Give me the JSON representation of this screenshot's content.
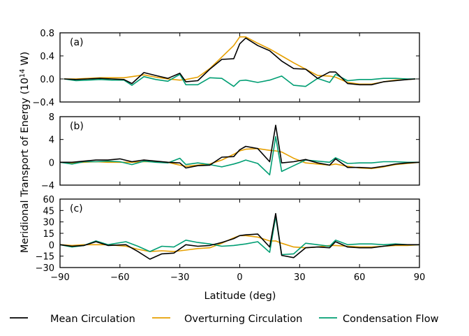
{
  "ylabel_prefix": "Meridional Transport of Energy (10",
  "ylabel_exp": "14",
  "ylabel_suffix": " W)",
  "xlabel": "Latitude (deg)",
  "colors": {
    "mean": "#000000",
    "overturning": "#E69F00",
    "condensation": "#009E73"
  },
  "legend": {
    "placement": "bottom",
    "entries": [
      "Mean Circulation",
      "Overturning Circulation",
      "Condensation Flow"
    ]
  },
  "chart_data": [
    {
      "type": "line",
      "panel_label": "(a)",
      "xlim": [
        -90,
        90
      ],
      "ylim": [
        -0.4,
        0.8
      ],
      "yticks": [
        "0.8",
        "0.4",
        "0.0",
        "−0.4"
      ],
      "ytick_values": [
        0.8,
        0.4,
        0.0,
        -0.4
      ],
      "x": [
        -88,
        -82,
        -76,
        -70,
        -64,
        -58,
        -54,
        -48,
        -42,
        -36,
        -30,
        -27,
        -21,
        -15,
        -9,
        -3,
        0,
        3,
        9,
        15,
        21,
        27,
        33,
        39,
        45,
        48,
        54,
        60,
        66,
        72,
        78,
        84,
        88
      ],
      "series": [
        {
          "key": "mean",
          "name": "Mean Circulation",
          "values": [
            0,
            -0.01,
            0,
            0.01,
            0,
            -0.01,
            -0.08,
            0.11,
            0.06,
            0.01,
            0.1,
            -0.05,
            -0.03,
            0.17,
            0.34,
            0.35,
            0.61,
            0.71,
            0.58,
            0.49,
            0.31,
            0.18,
            0.17,
            0.01,
            0.12,
            0.12,
            -0.08,
            -0.1,
            -0.1,
            -0.05,
            -0.03,
            -0.01,
            0
          ]
        },
        {
          "key": "overturning",
          "name": "Overturning Circulation",
          "values": [
            0,
            0,
            0.01,
            0.02,
            0.02,
            0.02,
            0.04,
            0.07,
            0.03,
            0,
            -0.02,
            -0.01,
            0.03,
            0.18,
            0.38,
            0.58,
            0.73,
            0.73,
            0.62,
            0.52,
            0.4,
            0.28,
            0.17,
            0.06,
            0.05,
            0.03,
            -0.06,
            -0.09,
            -0.09,
            -0.05,
            -0.02,
            -0.01,
            0
          ]
        },
        {
          "key": "condensation",
          "name": "Condensation Flow",
          "values": [
            0,
            -0.03,
            -0.02,
            -0.01,
            -0.02,
            -0.02,
            -0.11,
            0.04,
            -0.01,
            -0.04,
            0.08,
            -0.1,
            -0.1,
            0.02,
            0.01,
            -0.13,
            -0.03,
            -0.02,
            -0.06,
            -0.02,
            0.05,
            -0.11,
            -0.13,
            0.01,
            -0.06,
            0.08,
            -0.03,
            -0.01,
            -0.01,
            0.01,
            0.01,
            0,
            0
          ]
        }
      ]
    },
    {
      "type": "line",
      "panel_label": "(b)",
      "xlim": [
        -90,
        90
      ],
      "ylim": [
        -4,
        8
      ],
      "yticks": [
        "8",
        "4",
        "0",
        "−4"
      ],
      "ytick_values": [
        8,
        4,
        0,
        -4
      ],
      "x": [
        -90,
        -84,
        -78,
        -72,
        -66,
        -60,
        -54,
        -48,
        -42,
        -36,
        -30,
        -27,
        -21,
        -15,
        -9,
        -3,
        0,
        3,
        9,
        15,
        18,
        21,
        27,
        33,
        39,
        45,
        48,
        54,
        60,
        66,
        72,
        78,
        84,
        90
      ],
      "series": [
        {
          "key": "mean",
          "name": "Mean Circulation",
          "values": [
            0,
            0,
            0.2,
            0.4,
            0.4,
            0.6,
            0.1,
            0.4,
            0.2,
            0,
            -0.1,
            -1.0,
            -0.6,
            -0.5,
            0.9,
            1.0,
            2.2,
            2.8,
            2.4,
            0.1,
            6.5,
            -0.1,
            0.1,
            0.5,
            -0.1,
            -0.5,
            0.6,
            -0.9,
            -0.9,
            -1.0,
            -0.7,
            -0.3,
            -0.1,
            0
          ]
        },
        {
          "key": "overturning",
          "name": "Overturning Circulation",
          "values": [
            0,
            -0.1,
            0,
            0.1,
            0,
            0,
            0,
            0.1,
            0.1,
            0,
            -0.5,
            -0.7,
            -0.5,
            -0.3,
            0.4,
            1.4,
            2.0,
            2.3,
            2.4,
            2.1,
            2.0,
            1.8,
            0.7,
            -0.1,
            -0.3,
            -0.5,
            -0.3,
            -0.7,
            -1.0,
            -1.1,
            -0.8,
            -0.4,
            -0.2,
            0
          ]
        },
        {
          "key": "condensation",
          "name": "Condensation Flow",
          "values": [
            0,
            -0.3,
            0.1,
            0.1,
            0.2,
            0.1,
            -0.4,
            0.2,
            0,
            -0.1,
            0.7,
            -0.4,
            -0.1,
            -0.4,
            -0.8,
            -0.3,
            0,
            0.4,
            -0.2,
            -2.2,
            4.5,
            -1.6,
            -0.6,
            0.4,
            0.2,
            0,
            0.8,
            -0.2,
            -0.1,
            -0.1,
            0.1,
            0.1,
            0,
            0
          ]
        }
      ]
    },
    {
      "type": "line",
      "panel_label": "(c)",
      "xlim": [
        -90,
        90
      ],
      "ylim": [
        -30,
        60
      ],
      "yticks": [
        "60",
        "45",
        "30",
        "15",
        "0",
        "−15",
        "−30"
      ],
      "ytick_values": [
        60,
        45,
        30,
        15,
        0,
        -15,
        -30
      ],
      "x": [
        -90,
        -84,
        -78,
        -72,
        -66,
        -57,
        -51,
        -45,
        -39,
        -33,
        -27,
        -21,
        -15,
        -9,
        -3,
        0,
        3,
        9,
        15,
        18,
        21,
        27,
        33,
        39,
        45,
        48,
        54,
        60,
        66,
        72,
        78,
        84,
        90
      ],
      "series": [
        {
          "key": "mean",
          "name": "Mean Circulation",
          "values": [
            0,
            -2,
            -1,
            4,
            -1,
            0,
            -9,
            -19,
            -12,
            -11,
            0,
            -2,
            -1,
            3,
            8,
            12,
            13,
            14,
            -3,
            41,
            -14,
            -17,
            -4,
            -3,
            -4,
            4,
            -3,
            -4,
            -4,
            -2,
            0,
            0,
            0
          ]
        },
        {
          "key": "overturning",
          "name": "Overturning Circulation",
          "values": [
            0,
            -1,
            0,
            0,
            0,
            -2,
            -6,
            -9,
            -8,
            -9,
            -7,
            -5,
            -4,
            2,
            9,
            12,
            12,
            10,
            5,
            5,
            2,
            -3,
            -4,
            -3,
            -1,
            -1,
            -2,
            -3,
            -3,
            -2,
            -1,
            -1,
            0
          ]
        },
        {
          "key": "condensation",
          "name": "Condensation Flow",
          "values": [
            0,
            -3,
            -1,
            5,
            0,
            4,
            -2,
            -9,
            -2,
            -3,
            6,
            3,
            1,
            -2,
            -1,
            0,
            1,
            4,
            -10,
            37,
            -13,
            -12,
            2,
            0,
            -2,
            6,
            0,
            1,
            1,
            0,
            1,
            0,
            0
          ]
        }
      ]
    }
  ],
  "xticks": [
    "−90",
    "−60",
    "−30",
    "0",
    "30",
    "60",
    "90"
  ],
  "xtick_values": [
    -90,
    -60,
    -30,
    0,
    30,
    60,
    90
  ]
}
